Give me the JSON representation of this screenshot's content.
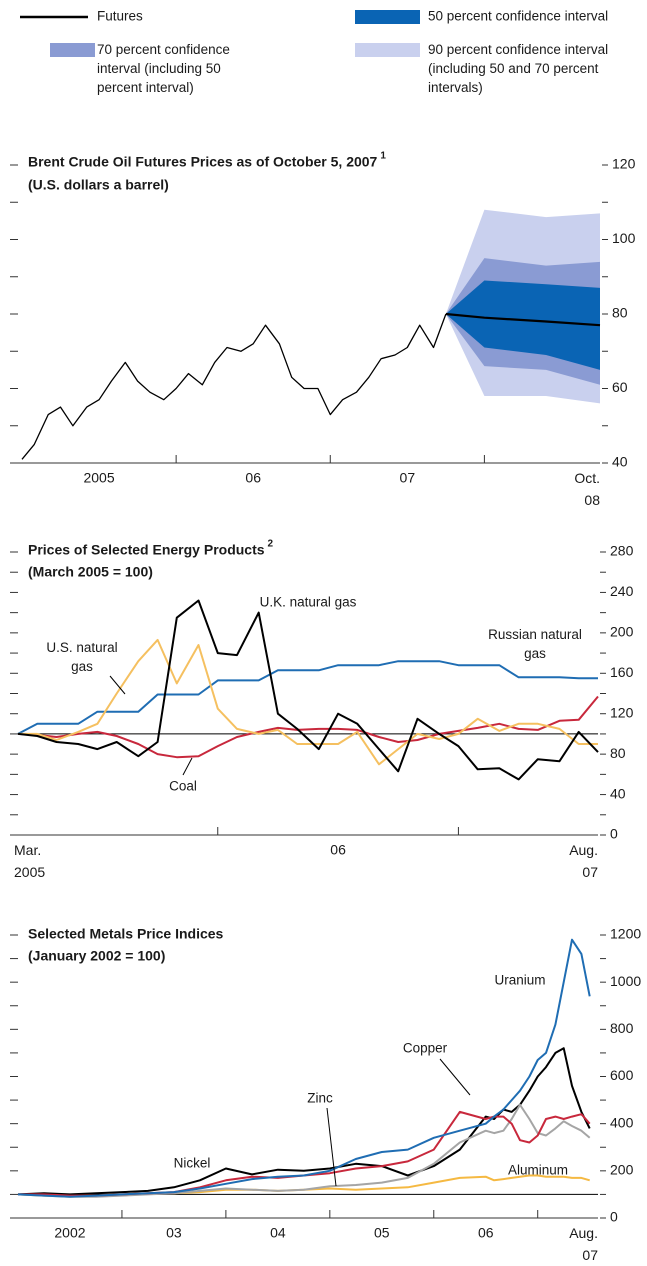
{
  "chart_data": [
    {
      "type": "fan",
      "title": "Brent Crude Oil Futures Prices as of October 5, 2007",
      "title_note": "1",
      "subtitle": "(U.S. dollars a barrel)",
      "xlim": [
        2005.0,
        2008.75
      ],
      "xticks": [
        {
          "value": 2005.5,
          "label": "2005"
        },
        {
          "value": 2006.5,
          "label": "06"
        },
        {
          "value": 2007.5,
          "label": "07"
        },
        {
          "value": 2008.75,
          "label": "Oct.\n08"
        }
      ],
      "xdividers": [
        2006,
        2007,
        2008
      ],
      "ylim": [
        40,
        120
      ],
      "yticks": [
        40,
        60,
        80,
        100,
        120
      ],
      "yminorticks": [
        50,
        70,
        90,
        110
      ],
      "history": {
        "color": "#000000",
        "x": [
          2005.0,
          2005.08,
          2005.17,
          2005.25,
          2005.33,
          2005.42,
          2005.5,
          2005.58,
          2005.67,
          2005.75,
          2005.83,
          2005.92,
          2006.0,
          2006.08,
          2006.17,
          2006.25,
          2006.33,
          2006.42,
          2006.5,
          2006.58,
          2006.67,
          2006.75,
          2006.83,
          2006.92,
          2007.0,
          2007.08,
          2007.17,
          2007.25,
          2007.33,
          2007.42,
          2007.5,
          2007.58,
          2007.67,
          2007.75
        ],
        "values": [
          41,
          45,
          53,
          55,
          50,
          55,
          57,
          62,
          67,
          62,
          59,
          57,
          60,
          64,
          61,
          67,
          71,
          70,
          72,
          77,
          72,
          63,
          60,
          60,
          53,
          57,
          59,
          63,
          68,
          69,
          71,
          77,
          71,
          80
        ]
      },
      "forecast_x": [
        2007.75,
        2008.0,
        2008.4,
        2008.75
      ],
      "series": [
        {
          "name": "Futures",
          "color": "#000000",
          "values": [
            80,
            79,
            78,
            77
          ]
        }
      ],
      "bands": [
        {
          "name": "50 percent confidence interval",
          "color": "#0a64b4",
          "lower": [
            80,
            71,
            69,
            65
          ],
          "upper": [
            80,
            89,
            88,
            87
          ]
        },
        {
          "name": "70 percent confidence interval (including 50 percent interval)",
          "color": "#8a9bd3",
          "lower": [
            80,
            66,
            65,
            61
          ],
          "upper": [
            80,
            95,
            93,
            94
          ]
        },
        {
          "name": "90 percent confidence interval (including 50 and 70 percent intervals)",
          "color": "#c9d0ee",
          "lower": [
            80,
            58,
            58,
            56
          ],
          "upper": [
            80,
            108,
            106,
            107
          ]
        }
      ]
    },
    {
      "type": "line",
      "title": "Prices of Selected Energy Products",
      "title_note": "2",
      "subtitle": "(March 2005 = 100)",
      "xlim": [
        2005.17,
        2007.58
      ],
      "xticks": [
        {
          "value": 2005.17,
          "label": "Mar.\n2005"
        },
        {
          "value": 2006.5,
          "label": "06"
        },
        {
          "value": 2007.58,
          "label": "Aug.\n07"
        }
      ],
      "xdividers": [
        2006,
        2007
      ],
      "ylim": [
        0,
        280
      ],
      "yticks": [
        0,
        40,
        80,
        120,
        160,
        200,
        240,
        280
      ],
      "yminorticks": [
        20,
        60,
        100,
        140,
        180,
        220,
        260
      ],
      "baseline": 100,
      "x": [
        2005.17,
        2005.25,
        2005.33,
        2005.42,
        2005.5,
        2005.58,
        2005.67,
        2005.75,
        2005.83,
        2005.92,
        2006.0,
        2006.08,
        2006.17,
        2006.25,
        2006.33,
        2006.42,
        2006.5,
        2006.58,
        2006.67,
        2006.75,
        2006.83,
        2006.92,
        2007.0,
        2007.08,
        2007.17,
        2007.25,
        2007.33,
        2007.42,
        2007.5,
        2007.58
      ],
      "series": [
        {
          "name": "U.K. natural gas",
          "color": "#000000",
          "values": [
            100,
            98,
            92,
            90,
            85,
            92,
            78,
            92,
            215,
            232,
            180,
            178,
            220,
            120,
            105,
            85,
            120,
            110,
            85,
            63,
            115,
            100,
            88,
            65,
            66,
            55,
            75,
            73,
            102,
            82
          ]
        },
        {
          "name": "U.S. natural\ngas",
          "color": "#f5c060",
          "values": [
            100,
            100,
            94,
            102,
            110,
            140,
            172,
            193,
            150,
            188,
            125,
            105,
            100,
            104,
            90,
            90,
            90,
            102,
            70,
            85,
            100,
            95,
            100,
            115,
            103,
            110,
            110,
            105,
            90,
            90
          ]
        },
        {
          "name": "Russian natural\ngas",
          "color": "#1f6db3",
          "values": [
            100,
            110,
            110,
            110,
            122,
            122,
            122,
            139,
            139,
            139,
            153,
            153,
            153,
            163,
            163,
            163,
            168,
            168,
            168,
            172,
            172,
            172,
            168,
            168,
            168,
            156,
            156,
            156,
            155,
            155
          ]
        },
        {
          "name": "Coal",
          "color": "#c8283c",
          "values": [
            100,
            99,
            97,
            100,
            102,
            98,
            90,
            80,
            77,
            78,
            88,
            97,
            102,
            106,
            104,
            105,
            105,
            104,
            97,
            92,
            94,
            100,
            103,
            106,
            110,
            105,
            104,
            113,
            114,
            137
          ]
        }
      ]
    },
    {
      "type": "line",
      "title": "Selected Metals Price Indices",
      "subtitle": "(January 2002 = 100)",
      "xlim": [
        2002.0,
        2007.58
      ],
      "xticks": [
        {
          "value": 2002.5,
          "label": "2002"
        },
        {
          "value": 2003.5,
          "label": "03"
        },
        {
          "value": 2004.5,
          "label": "04"
        },
        {
          "value": 2005.5,
          "label": "05"
        },
        {
          "value": 2006.5,
          "label": "06"
        },
        {
          "value": 2007.58,
          "label": "Aug.\n07"
        }
      ],
      "xdividers": [
        2003,
        2004,
        2005,
        2006,
        2007
      ],
      "ylim": [
        0,
        1200
      ],
      "yticks": [
        0,
        200,
        400,
        600,
        800,
        1000,
        1200
      ],
      "yminorticks": [
        100,
        300,
        500,
        700,
        900,
        1100
      ],
      "baseline": 100,
      "x": [
        2002.0,
        2002.25,
        2002.5,
        2002.75,
        2003.0,
        2003.25,
        2003.5,
        2003.75,
        2004.0,
        2004.25,
        2004.5,
        2004.75,
        2005.0,
        2005.25,
        2005.5,
        2005.75,
        2006.0,
        2006.25,
        2006.5,
        2006.58,
        2006.67,
        2006.75,
        2006.83,
        2006.92,
        2007.0,
        2007.08,
        2007.17,
        2007.25,
        2007.33,
        2007.42,
        2007.5
      ],
      "series": [
        {
          "name": "Uranium",
          "color": "#1f6db3",
          "values": [
            100,
            95,
            90,
            95,
            100,
            105,
            110,
            125,
            145,
            165,
            175,
            180,
            200,
            250,
            280,
            290,
            340,
            370,
            400,
            430,
            460,
            500,
            540,
            600,
            670,
            700,
            820,
            1000,
            1180,
            1120,
            940
          ]
        },
        {
          "name": "Copper",
          "color": "#c8283c",
          "values": [
            100,
            100,
            95,
            95,
            100,
            105,
            110,
            130,
            160,
            175,
            170,
            180,
            190,
            210,
            220,
            240,
            290,
            450,
            420,
            430,
            430,
            400,
            330,
            320,
            350,
            420,
            430,
            420,
            430,
            440,
            400
          ]
        },
        {
          "name": "Zinc",
          "color": "#a5a5a5",
          "values": [
            100,
            95,
            90,
            90,
            95,
            100,
            105,
            115,
            125,
            120,
            115,
            120,
            135,
            140,
            150,
            170,
            230,
            320,
            370,
            360,
            370,
            420,
            480,
            420,
            360,
            350,
            380,
            410,
            390,
            370,
            340
          ]
        },
        {
          "name": "Nickel",
          "color": "#000000",
          "values": [
            100,
            105,
            100,
            105,
            110,
            115,
            130,
            160,
            210,
            185,
            205,
            200,
            210,
            230,
            220,
            180,
            220,
            290,
            430,
            420,
            460,
            450,
            480,
            540,
            600,
            640,
            700,
            720,
            560,
            450,
            380
          ]
        },
        {
          "name": "Aluminum",
          "color": "#f5b942",
          "values": [
            100,
            95,
            95,
            95,
            100,
            105,
            105,
            110,
            120,
            120,
            115,
            120,
            125,
            120,
            125,
            130,
            150,
            170,
            175,
            160,
            165,
            170,
            175,
            180,
            180,
            175,
            175,
            175,
            170,
            170,
            160
          ]
        }
      ]
    }
  ]
}
